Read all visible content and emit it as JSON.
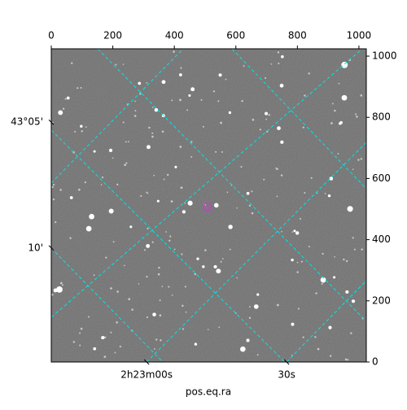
{
  "chart_data": {
    "type": "image",
    "xlabel": "pos.eq.ra",
    "xlim": [
      0,
      1024
    ],
    "ylim": [
      0,
      1024
    ],
    "xticks": [
      0,
      200,
      400,
      600,
      800,
      1000
    ],
    "yticks": [
      0,
      200,
      400,
      600,
      800,
      1000
    ],
    "ra_ticks": [
      {
        "value": 310,
        "label": "2h23m00s"
      },
      {
        "value": 765,
        "label": "30s"
      }
    ],
    "dec_ticks": [
      {
        "value": 784,
        "label": "43°05'"
      },
      {
        "value": 373,
        "label": "10'"
      }
    ],
    "grid": true,
    "grid_color": "#00e5e5",
    "marker_color": "#d633d6"
  }
}
